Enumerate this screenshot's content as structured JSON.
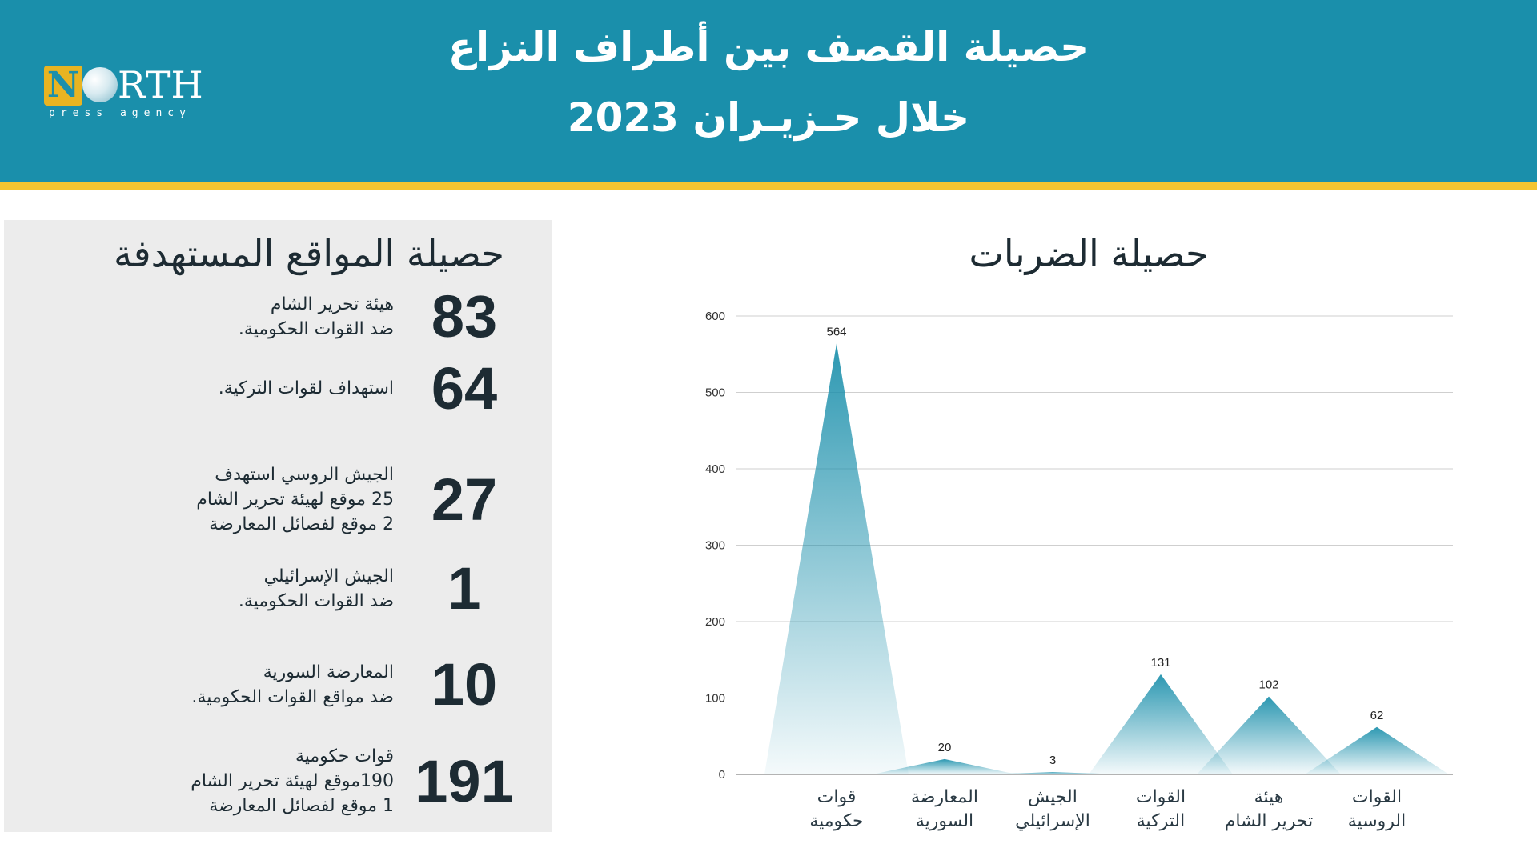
{
  "header": {
    "title_line1": "حصيلة القصف بين أطراف النزاع",
    "title_line2": "خلال حـزيـران 2023",
    "background_color": "#1a8fab",
    "stripe_color": "#f4c531"
  },
  "logo": {
    "word": "NORTH",
    "mark_letter": "N",
    "tagline": "press agency"
  },
  "targets_panel": {
    "title": "حصيلة المواقع المستهدفة",
    "items": [
      {
        "number": "83",
        "lines": [
          "هيئة تحرير الشام",
          "ضد القوات الحكومية."
        ]
      },
      {
        "number": "64",
        "lines": [
          "استهداف لقوات التركية."
        ]
      },
      {
        "number": "27",
        "lines": [
          "الجيش الروسي استهدف",
          "25 موقع لهيئة تحرير الشام",
          "2  موقع لفصائل المعارضة"
        ]
      },
      {
        "number": "1",
        "lines": [
          "الجيش الإسرائيلي",
          "ضد القوات الحكومية."
        ]
      },
      {
        "number": "10",
        "lines": [
          "المعارضة السورية",
          "ضد مواقع القوات الحكومية."
        ]
      },
      {
        "number": "191",
        "lines": [
          "قوات حكومية",
          "190موقع لهيئة تحرير الشام",
          "1 موقع لفصائل المعارضة"
        ]
      }
    ]
  },
  "chart_data": {
    "type": "area",
    "title": "حصيلة الضربات",
    "categories": [
      [
        "قوات",
        "حكومية"
      ],
      [
        "المعارضة",
        "السورية"
      ],
      [
        "الجيش",
        "الإسرائيلي"
      ],
      [
        "القوات",
        "التركية"
      ],
      [
        "هيئة",
        "تحرير الشام"
      ],
      [
        "القوات",
        "الروسية"
      ]
    ],
    "values": [
      564,
      20,
      3,
      131,
      102,
      62
    ],
    "ylim": [
      0,
      600
    ],
    "yticks": [
      0,
      100,
      200,
      300,
      400,
      500,
      600
    ],
    "grid": true,
    "color": "#1a8fab"
  }
}
